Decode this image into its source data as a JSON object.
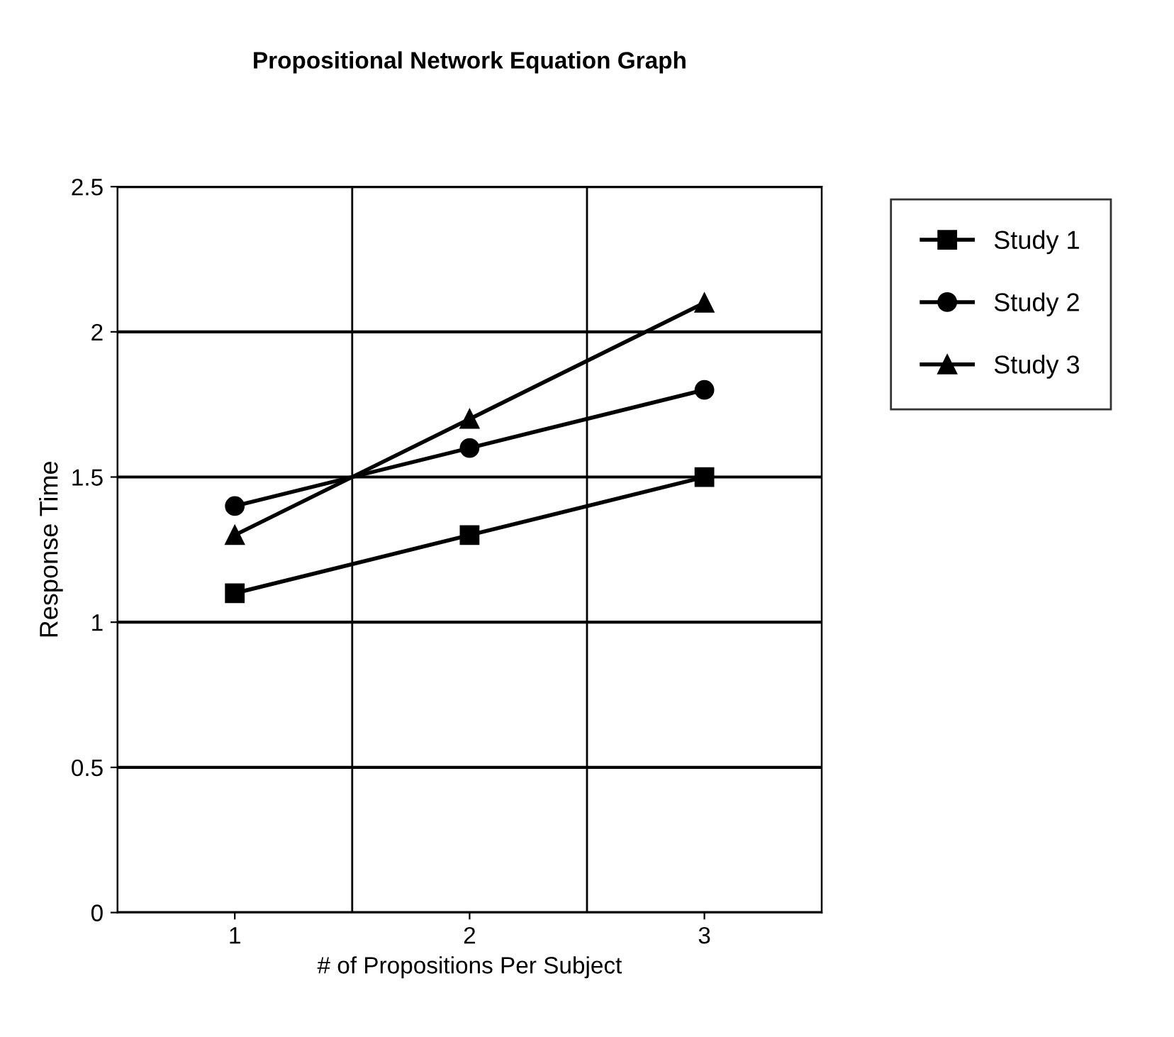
{
  "chart_data": {
    "type": "line",
    "title": "Propositional Network Equation Graph",
    "xlabel": "# of Propositions Per Subject",
    "ylabel": "Response Time",
    "categories": [
      "1",
      "2",
      "3"
    ],
    "series": [
      {
        "name": "Study 1",
        "color": "#000000",
        "marker": "square",
        "values": [
          1.1,
          1.3,
          1.5
        ]
      },
      {
        "name": "Study 2",
        "color": "#000000",
        "marker": "circle",
        "values": [
          1.4,
          1.6,
          1.8
        ]
      },
      {
        "name": "Study 3",
        "color": "#000000",
        "marker": "triangle",
        "values": [
          1.3,
          1.7,
          2.1
        ]
      }
    ],
    "ylim": [
      0,
      2.5
    ],
    "yticks": [
      0,
      0.5,
      1,
      1.5,
      2,
      2.5
    ],
    "grid": true,
    "legend": "right",
    "line_style": "solid"
  }
}
